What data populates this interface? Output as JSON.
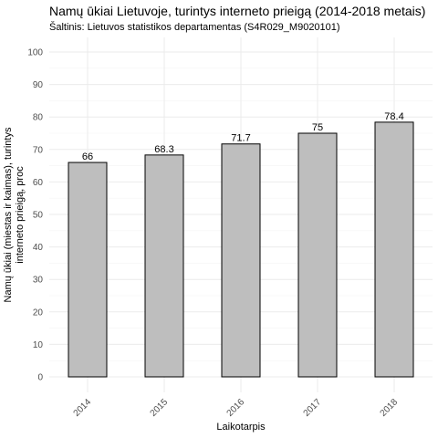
{
  "chart_data": {
    "type": "bar",
    "title": "Namų ūkiai Lietuvoje, turintys interneto prieigą (2014-2018 metais)",
    "subtitle": "Šaltinis: Lietuvos statistikos departamentas (S4R029_M9020101)",
    "xlabel": "Laikotarpis",
    "ylabel": "Namų ūkiai (miestas ir kaimas), turintys interneto prieigą, proc",
    "categories": [
      "2014",
      "2015",
      "2016",
      "2017",
      "2018"
    ],
    "values": [
      66,
      68.3,
      71.7,
      75,
      78.4
    ],
    "data_labels": [
      "66",
      "68.3",
      "71.7",
      "75",
      "78.4"
    ],
    "ylim": [
      0,
      100
    ],
    "yticks": [
      0,
      10,
      20,
      30,
      40,
      50,
      60,
      70,
      80,
      90,
      100
    ],
    "grid": true,
    "legend": "none",
    "colors": {
      "bar_fill": "#bebebe",
      "bar_stroke": "#000000",
      "grid": "#ebebeb"
    }
  }
}
